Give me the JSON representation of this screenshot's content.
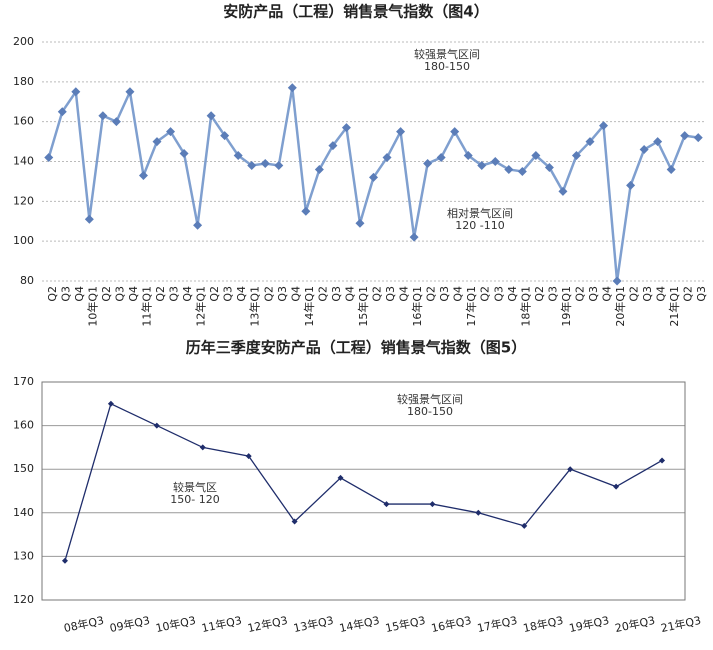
{
  "chart_data": [
    {
      "type": "line",
      "title": "安防产品（工程）销售景气指数（图4）",
      "categories": [
        "Q2",
        "Q3",
        "Q4",
        "10年Q1",
        "Q2",
        "Q3",
        "Q4",
        "11年Q1",
        "Q2",
        "Q3",
        "Q4",
        "12年Q1",
        "Q2",
        "Q3",
        "Q4",
        "13年Q1",
        "Q2",
        "Q3",
        "Q4",
        "14年Q1",
        "Q2",
        "Q3",
        "Q4",
        "15年Q1",
        "Q2",
        "Q3",
        "Q4",
        "16年Q1",
        "Q2",
        "Q3",
        "Q4",
        "17年Q1",
        "Q2",
        "Q3",
        "Q4",
        "18年Q1",
        "Q2",
        "Q3",
        "19年Q1",
        "Q2",
        "Q3",
        "Q4",
        "20年Q1",
        "Q2",
        "Q3",
        "Q4",
        "21年Q1",
        "Q2",
        "Q3"
      ],
      "values": [
        142,
        165,
        175,
        111,
        163,
        160,
        175,
        133,
        150,
        155,
        144,
        108,
        163,
        153,
        143,
        138,
        139,
        138,
        177,
        115,
        136,
        148,
        157,
        109,
        132,
        142,
        155,
        102,
        139,
        142,
        155,
        143,
        138,
        140,
        136,
        135,
        143,
        137,
        125,
        143,
        150,
        158,
        80,
        128,
        146,
        150,
        136,
        153,
        152
      ],
      "color": "#7f9fcf",
      "marker_color": "#5b7db8",
      "ylim": [
        80,
        200
      ],
      "yticks": [
        80,
        100,
        120,
        140,
        160,
        180,
        200
      ],
      "grid": true,
      "annotations": [
        [
          "较强景气区间",
          "180-150"
        ],
        [
          "相对景气区间",
          "120 -110"
        ]
      ]
    },
    {
      "type": "line",
      "title": "历年三季度安防产品（工程）销售景气指数（图5）",
      "categories": [
        "08年Q3",
        "09年Q3",
        "10年Q3",
        "11年Q3",
        "12年Q3",
        "13年Q3",
        "14年Q3",
        "15年Q3",
        "16年Q3",
        "17年Q3",
        "18年Q3",
        "19年Q3",
        "20年Q3",
        "21年Q3"
      ],
      "values": [
        129,
        165,
        160,
        155,
        153,
        138,
        148,
        142,
        142,
        140,
        137,
        150,
        146,
        152
      ],
      "color": "#1f2d6b",
      "marker_color": "#1f2d6b",
      "ylim": [
        120,
        170
      ],
      "yticks": [
        120,
        130,
        140,
        150,
        160,
        170
      ],
      "grid": true,
      "annotations": [
        [
          "较强景气区间",
          "180-150"
        ],
        [
          "较景气区",
          "150- 120"
        ]
      ]
    }
  ]
}
